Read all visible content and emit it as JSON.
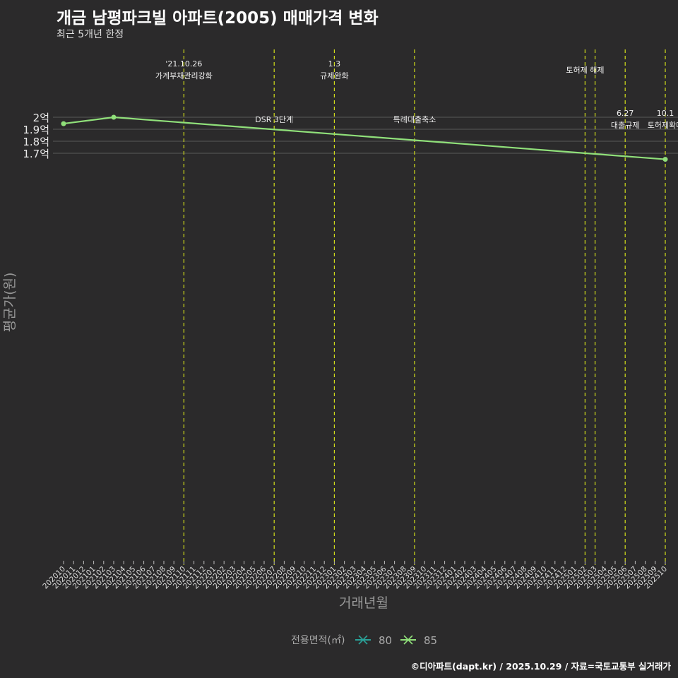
{
  "title": "개금 남평파크빌 아파트(2005) 매매가격 변화",
  "subtitle": "최근 5개년 한정",
  "caption": "©디아파트(dapt.kr) / 2025.10.29 / 자료=국토교통부 실거래가",
  "colors": {
    "background": "#2b2a2b",
    "line85": "#90e07a",
    "line80": "#2aa198",
    "vline": "#d4e01a",
    "grid": "#5a5a5a"
  },
  "chart_data": {
    "type": "line",
    "xlabel": "거래년월",
    "ylabel": "평균가(원)",
    "x_categories": [
      "202010",
      "202011",
      "202012",
      "202101",
      "202102",
      "202103",
      "202104",
      "202105",
      "202106",
      "202107",
      "202108",
      "202109",
      "202110",
      "202111",
      "202112",
      "202201",
      "202202",
      "202203",
      "202204",
      "202205",
      "202206",
      "202207",
      "202208",
      "202209",
      "202210",
      "202211",
      "202212",
      "202301",
      "202302",
      "202303",
      "202304",
      "202305",
      "202306",
      "202307",
      "202308",
      "202309",
      "202310",
      "202311",
      "202312",
      "202401",
      "202402",
      "202403",
      "202404",
      "202405",
      "202406",
      "202407",
      "202408",
      "202409",
      "202410",
      "202411",
      "202412",
      "202501",
      "202502",
      "202503",
      "202504",
      "202505",
      "202506",
      "202507",
      "202508",
      "202509",
      "202510"
    ],
    "ylim": [
      16300,
      20600
    ],
    "y_ticks": [
      {
        "value": 17000,
        "label": "1.7억"
      },
      {
        "value": 18000,
        "label": "1.8억"
      },
      {
        "value": 19000,
        "label": "1.9억"
      },
      {
        "value": 20000,
        "label": "2억"
      }
    ],
    "legend": {
      "title": "전용면적(㎡)",
      "position": "bottom",
      "entries": [
        "80",
        "85"
      ]
    },
    "series": [
      {
        "name": "80",
        "points": []
      },
      {
        "name": "85",
        "points": [
          {
            "x": "202010",
            "y": 19465
          },
          {
            "x": "202103",
            "y": 20000
          },
          {
            "x": "202510",
            "y": 16495
          }
        ]
      }
    ],
    "events": [
      {
        "x": "202110",
        "lines": [
          "'21.10.26",
          "가계부채관리강화"
        ],
        "row": "top"
      },
      {
        "x": "202207",
        "lines": [
          "DSR 3단계"
        ],
        "row": "mid"
      },
      {
        "x": "202301",
        "lines": [
          "1.3",
          "규제완화"
        ],
        "row": "top"
      },
      {
        "x": "202309",
        "lines": [
          "특례대출축소"
        ],
        "row": "mid"
      },
      {
        "x": "202502",
        "lines": [
          "토허제 해제"
        ],
        "row": "upper"
      },
      {
        "x": "202503",
        "lines": [],
        "row": "none"
      },
      {
        "x": "202506",
        "lines": [
          "6.27",
          "대출규제"
        ],
        "row": "mid2"
      },
      {
        "x": "202510",
        "lines": [
          "10.1",
          "토허제확대"
        ],
        "row": "mid2"
      }
    ]
  }
}
